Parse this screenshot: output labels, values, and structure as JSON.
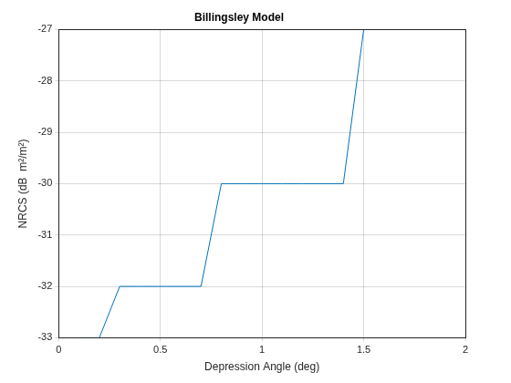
{
  "chart_data": {
    "type": "line",
    "title": "Billingsley Model",
    "x_label": "Depression Angle (deg)",
    "y_label": "NRCS (dB  m²/m²)",
    "x": [
      0.1,
      0.2,
      0.3,
      0.4,
      0.5,
      0.6,
      0.7,
      0.8,
      0.9,
      1.0,
      1.1,
      1.2,
      1.3,
      1.4,
      1.5,
      1.6,
      1.7,
      1.8,
      1.9,
      2.0
    ],
    "values": [
      -33,
      -33,
      -32,
      -32,
      -32,
      -32,
      -32,
      -30,
      -30,
      -30,
      -30,
      -30,
      -30,
      -30,
      -27,
      -27,
      -27,
      -27,
      -27,
      -27
    ],
    "color": "#0072bd",
    "xlim": [
      0,
      2
    ],
    "xticks": [
      0,
      0.5,
      1,
      1.5,
      2
    ],
    "ylim": [
      -33,
      -27
    ],
    "yticks": [
      -33,
      -32,
      -31,
      -30,
      -29,
      -28,
      -27
    ],
    "grid": true
  }
}
